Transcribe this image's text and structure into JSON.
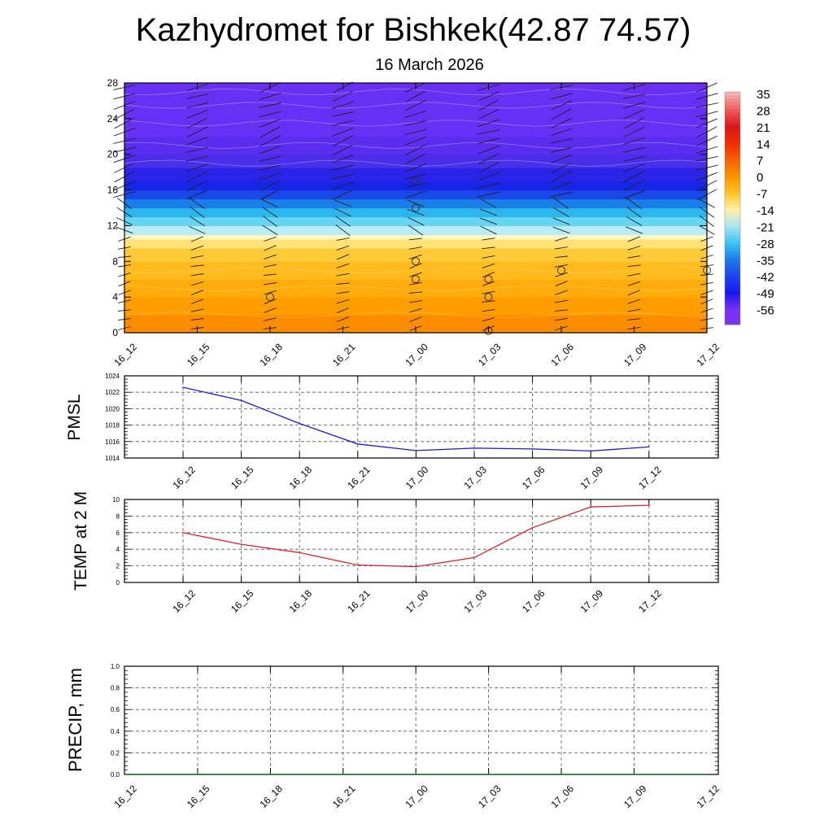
{
  "title": "Kazhydromet for Bishkek(42.87 74.57)",
  "subtitle": "16 March 2026",
  "colors": {
    "pmsl_line": "#1a1adc",
    "temp_line": "#e02020",
    "precip_line": "#1a7a1a",
    "grid": "#555555"
  },
  "chart_data": [
    {
      "id": "cross_section",
      "type": "heatmap",
      "title": "",
      "x_ticks": [
        "16_12",
        "16_15",
        "16_18",
        "16_21",
        "17_00",
        "17_03",
        "17_06",
        "17_09",
        "17_12"
      ],
      "y_ticks": [
        "0",
        "4",
        "8",
        "12",
        "16",
        "20",
        "24",
        "28"
      ],
      "ylim": [
        0,
        28
      ],
      "legend_position": "right",
      "colorbar_labels": [
        "35",
        "28",
        "21",
        "14",
        "7",
        "0",
        "-7",
        "-14",
        "-21",
        "-28",
        "-35",
        "-42",
        "-49",
        "-56"
      ],
      "colorbar_colors": [
        "#f6b0b0",
        "#ee5a5a",
        "#d81818",
        "#f02c00",
        "#f56200",
        "#fb9300",
        "#ffc42a",
        "#fff1a8",
        "#a8e4f4",
        "#3cc4f0",
        "#1f7ae8",
        "#1a46ec",
        "#1818ea",
        "#7a32f2"
      ],
      "temperature_bands": [
        {
          "from": 0,
          "to": 2,
          "color": "#fb8c00"
        },
        {
          "from": 2,
          "to": 4,
          "color": "#fd9d00"
        },
        {
          "from": 4,
          "to": 6,
          "color": "#feac0c"
        },
        {
          "from": 6,
          "to": 8,
          "color": "#ffba1c"
        },
        {
          "from": 8,
          "to": 9.5,
          "color": "#ffca38"
        },
        {
          "from": 9.5,
          "to": 10.5,
          "color": "#ffe176"
        },
        {
          "from": 10.5,
          "to": 11,
          "color": "#fff7c4"
        },
        {
          "from": 11,
          "to": 12,
          "color": "#b8ecf6"
        },
        {
          "from": 12,
          "to": 13,
          "color": "#66d4f2"
        },
        {
          "from": 13,
          "to": 14,
          "color": "#2cb6ee"
        },
        {
          "from": 14,
          "to": 15,
          "color": "#1a7ee8"
        },
        {
          "from": 15,
          "to": 16,
          "color": "#1a48e8"
        },
        {
          "from": 16,
          "to": 17,
          "color": "#1626e6"
        },
        {
          "from": 17,
          "to": 18.5,
          "color": "#2a24e8"
        },
        {
          "from": 18.5,
          "to": 20,
          "color": "#4a2eea"
        },
        {
          "from": 20,
          "to": 22,
          "color": "#5a2ef0"
        },
        {
          "from": 22,
          "to": 28,
          "color": "#6830f4"
        }
      ],
      "calm_markers": [
        {
          "x": 2,
          "y": 4
        },
        {
          "x": 4,
          "y": 17
        },
        {
          "x": 4,
          "y": 14
        },
        {
          "x": 4,
          "y": 8
        },
        {
          "x": 4,
          "y": 6
        },
        {
          "x": 5,
          "y": 6
        },
        {
          "x": 5,
          "y": 4
        },
        {
          "x": 5,
          "y": 0.2
        },
        {
          "x": 6,
          "y": 7
        },
        {
          "x": 8,
          "y": 7
        }
      ],
      "wind_levels": [
        0.5,
        1.5,
        2.5,
        3.5,
        4.5,
        5.5,
        6.5,
        7.5,
        8.5,
        9.5,
        10.5,
        11.5,
        12.5,
        13.5,
        14.5,
        15.5,
        16.5,
        17.5,
        18.5,
        19.5,
        20.5,
        21.5,
        22.5,
        23.5,
        24.5,
        25.5,
        26.5,
        27.5
      ]
    },
    {
      "id": "pmsl",
      "type": "line",
      "ylabel": "PMSL",
      "x": [
        "16_12",
        "16_15",
        "16_18",
        "16_21",
        "17_00",
        "17_03",
        "17_06",
        "17_09",
        "17_12"
      ],
      "y_ticks": [
        "1014",
        "1016",
        "1018",
        "1020",
        "1022",
        "1024"
      ],
      "ylim": [
        1014,
        1024
      ],
      "series": [
        {
          "name": "PMSL",
          "values": [
            1022.6,
            1021.0,
            1018.2,
            1015.7,
            1014.9,
            1015.2,
            1015.1,
            1014.85,
            1015.35
          ]
        }
      ]
    },
    {
      "id": "temp",
      "type": "line",
      "ylabel": "TEMP at 2 M",
      "x": [
        "16_12",
        "16_15",
        "16_18",
        "16_21",
        "17_00",
        "17_03",
        "17_06",
        "17_09",
        "17_12"
      ],
      "y_ticks": [
        "0",
        "2",
        "4",
        "6",
        "8",
        "10"
      ],
      "ylim": [
        0,
        10
      ],
      "series": [
        {
          "name": "TEMP at 2 M",
          "values": [
            6.0,
            4.6,
            3.6,
            2.1,
            1.9,
            3.0,
            6.6,
            9.1,
            9.3
          ]
        }
      ]
    },
    {
      "id": "precip",
      "type": "line",
      "ylabel": "PRECIP, mm",
      "x": [
        "16_12",
        "16_15",
        "16_18",
        "16_21",
        "17_00",
        "17_03",
        "17_06",
        "17_09",
        "17_12"
      ],
      "y_ticks": [
        "0.0",
        "0.2",
        "0.4",
        "0.6",
        "0.8",
        "1.0"
      ],
      "ylim": [
        0,
        1
      ],
      "series": [
        {
          "name": "PRECIP",
          "values": [
            0,
            0,
            0,
            0,
            0,
            0,
            0,
            0,
            0
          ]
        }
      ]
    }
  ]
}
